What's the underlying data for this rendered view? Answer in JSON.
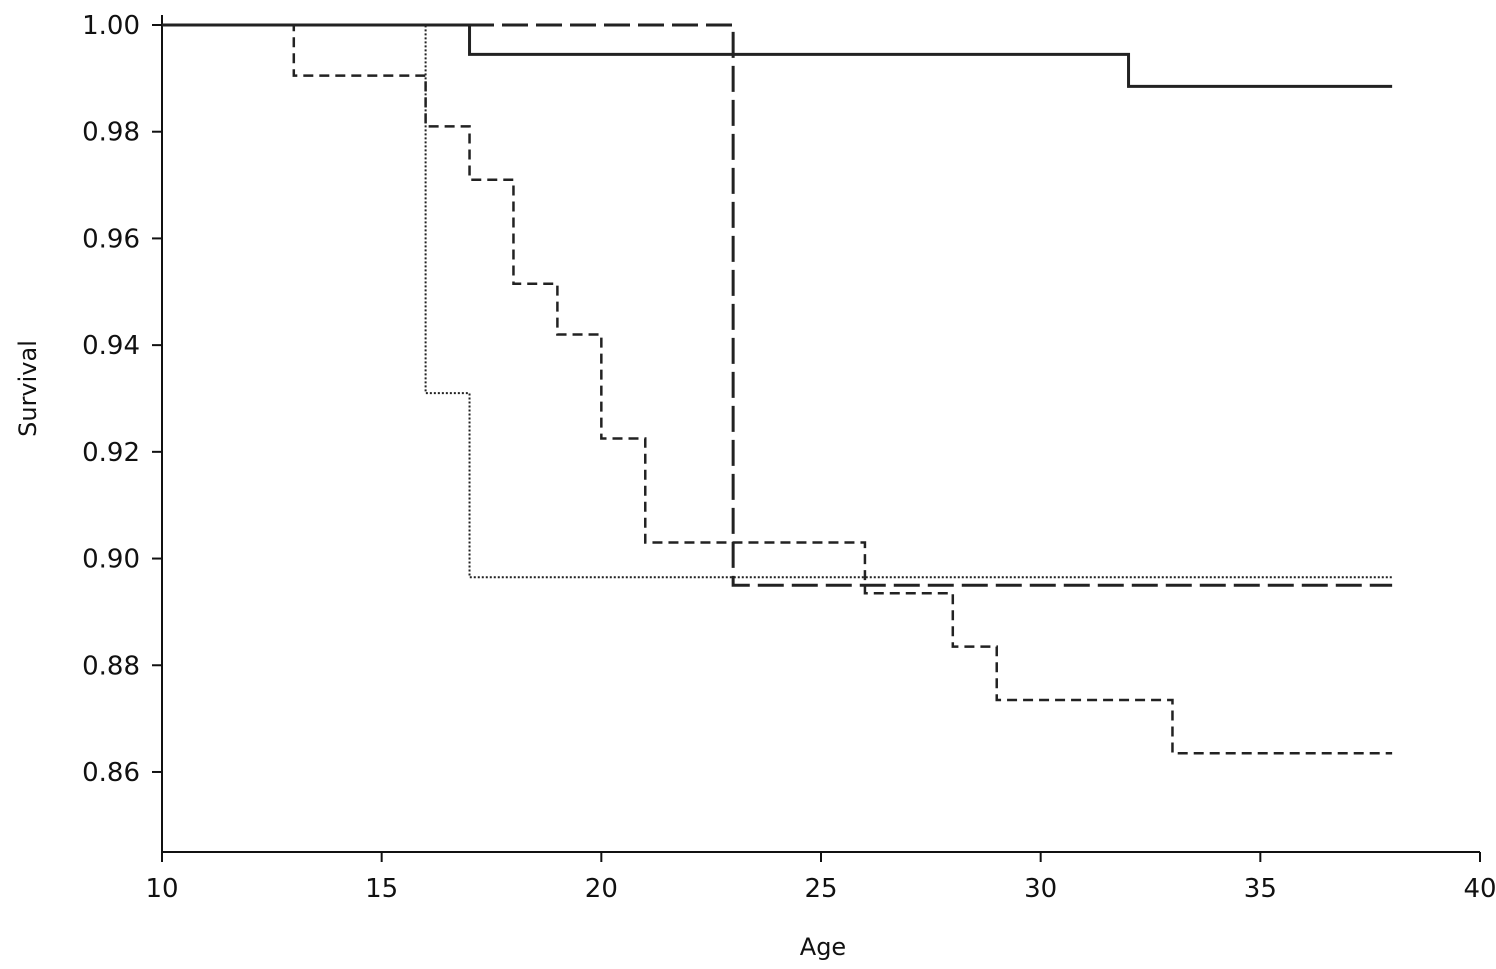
{
  "chart_data": {
    "type": "line",
    "subtype": "step",
    "title": "",
    "xlabel": "Age",
    "ylabel": "Survival",
    "xlim": [
      10,
      40
    ],
    "ylim": [
      0.845,
      1.0
    ],
    "xticks": [
      10,
      15,
      20,
      25,
      30,
      35,
      40
    ],
    "xtick_labels": [
      "10",
      "15",
      "20",
      "25",
      "30",
      "35",
      "40"
    ],
    "yticks": [
      1.0,
      0.98,
      0.96,
      0.94,
      0.92,
      0.9,
      0.88,
      0.86
    ],
    "ytick_labels": [
      "1.00",
      "0.98",
      "0.96",
      "0.94",
      "0.92",
      "0.90",
      "0.88",
      "0.86"
    ],
    "grid": false,
    "legend": "none",
    "series": [
      {
        "style": "solid",
        "color": "#222222",
        "x": [
          10,
          17,
          32,
          38
        ],
        "y": [
          1.0,
          0.9945,
          0.9885,
          0.9885
        ]
      },
      {
        "style": "long-dash",
        "color": "#222222",
        "x": [
          10,
          23,
          38
        ],
        "y": [
          1.0,
          0.895,
          0.895
        ]
      },
      {
        "style": "dotted",
        "color": "#222222",
        "x": [
          10,
          16,
          17,
          38
        ],
        "y": [
          1.0,
          0.931,
          0.8965,
          0.8965
        ]
      },
      {
        "style": "short-dash",
        "color": "#222222",
        "x": [
          10,
          13,
          16,
          17,
          18,
          19,
          20,
          21,
          26,
          28,
          29,
          33,
          38
        ],
        "y": [
          1.0,
          0.9905,
          0.981,
          0.971,
          0.9515,
          0.942,
          0.9225,
          0.903,
          0.8935,
          0.8835,
          0.8735,
          0.8635,
          0.8635
        ]
      }
    ]
  }
}
